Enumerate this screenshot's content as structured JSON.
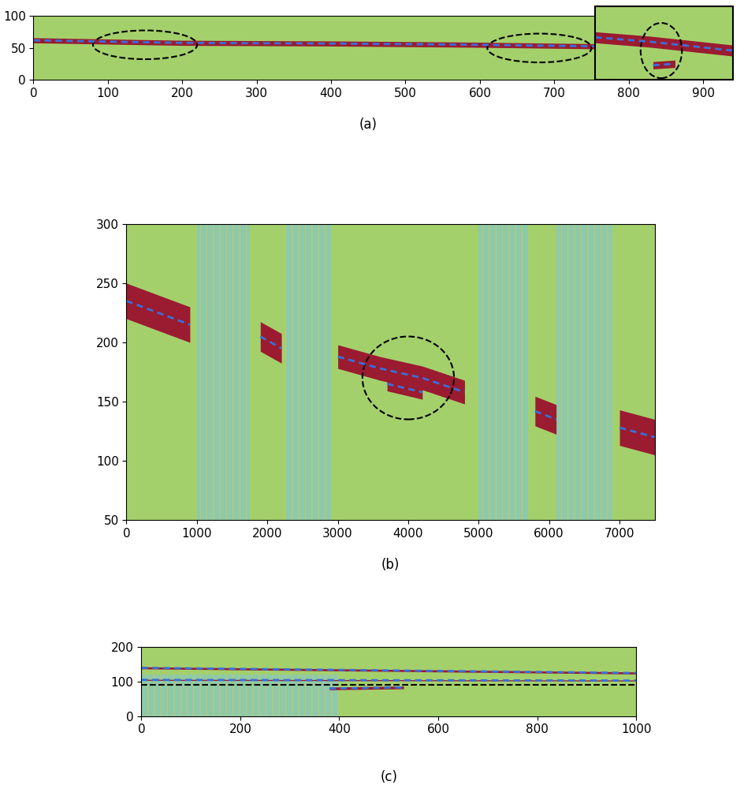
{
  "chart_data": [
    {
      "type": "heatmap",
      "caption": "(a)",
      "xlim": [
        0,
        900
      ],
      "ylim": [
        0,
        100
      ],
      "xticks": [
        0,
        100,
        200,
        300,
        400,
        500,
        600,
        700,
        800,
        900
      ],
      "yticks": [
        0,
        50,
        100
      ],
      "bands": [
        {
          "x": [
            0,
            200,
            400,
            600,
            800,
            900
          ],
          "y": [
            62,
            58,
            57,
            55,
            52,
            50
          ],
          "thickness": 8
        }
      ],
      "noise_regions": [],
      "ellipses": [
        {
          "x": 150,
          "y": 55,
          "width": 140,
          "height": 45
        },
        {
          "x": 680,
          "y": 50,
          "width": 140,
          "height": 45
        }
      ],
      "inset": {
        "xlim": [
          0,
          100
        ],
        "ylim": [
          0,
          100
        ],
        "tick_labels": false,
        "bands": [
          {
            "x": [
              0,
              40,
              60,
              100
            ],
            "y": [
              58,
              52,
              48,
              40
            ],
            "thickness": 15
          },
          {
            "x": [
              42,
              58
            ],
            "y": [
              20,
              22
            ],
            "thickness": 10
          }
        ],
        "ellipses": [
          {
            "x": 48,
            "y": 40,
            "width": 30,
            "height": 75
          }
        ]
      }
    },
    {
      "type": "heatmap",
      "caption": "(b)",
      "xlim": [
        0,
        7500
      ],
      "ylim": [
        50,
        300
      ],
      "xticks": [
        0,
        1000,
        2000,
        3000,
        4000,
        5000,
        6000,
        7000
      ],
      "yticks": [
        50,
        100,
        150,
        200,
        250,
        300
      ],
      "bands": [
        {
          "x": [
            0,
            900
          ],
          "y": [
            235,
            215
          ],
          "thickness": 30
        },
        {
          "x": [
            1900,
            2200
          ],
          "y": [
            205,
            195
          ],
          "thickness": 25
        },
        {
          "x": [
            3000,
            3600,
            4200,
            4800
          ],
          "y": [
            188,
            178,
            170,
            158
          ],
          "thickness": 20
        },
        {
          "x": [
            3700,
            4200
          ],
          "y": [
            165,
            158
          ],
          "thickness": 12
        },
        {
          "x": [
            5800,
            6100
          ],
          "y": [
            142,
            135
          ],
          "thickness": 25
        },
        {
          "x": [
            7000,
            7500
          ],
          "y": [
            128,
            120
          ],
          "thickness": 30
        }
      ],
      "noise_regions": [
        {
          "x": [
            1000,
            1750
          ],
          "y": [
            50,
            300
          ]
        },
        {
          "x": [
            2250,
            2900
          ],
          "y": [
            50,
            300
          ]
        },
        {
          "x": [
            5000,
            5700
          ],
          "y": [
            50,
            300
          ]
        },
        {
          "x": [
            6100,
            6900
          ],
          "y": [
            50,
            300
          ]
        }
      ],
      "ellipses": [
        {
          "x": 4000,
          "y": 170,
          "width": 1300,
          "height": 70
        }
      ]
    },
    {
      "type": "heatmap",
      "caption": "(c)",
      "xlim": [
        0,
        1000
      ],
      "ylim": [
        0,
        200
      ],
      "xticks": [
        0,
        200,
        400,
        600,
        800,
        1000
      ],
      "yticks": [
        0,
        100,
        200
      ],
      "bands": [
        {
          "x": [
            0,
            1000
          ],
          "y": [
            140,
            125
          ],
          "thickness": 6
        },
        {
          "x": [
            0,
            1000
          ],
          "y": [
            105,
            103
          ],
          "thickness": 3
        },
        {
          "x": [
            380,
            530
          ],
          "y": [
            80,
            83
          ],
          "thickness": 8
        }
      ],
      "noise_regions": [
        {
          "x": [
            0,
            400
          ],
          "y": [
            0,
            120
          ]
        }
      ],
      "ellipses": [],
      "hlines": [
        90
      ]
    }
  ]
}
